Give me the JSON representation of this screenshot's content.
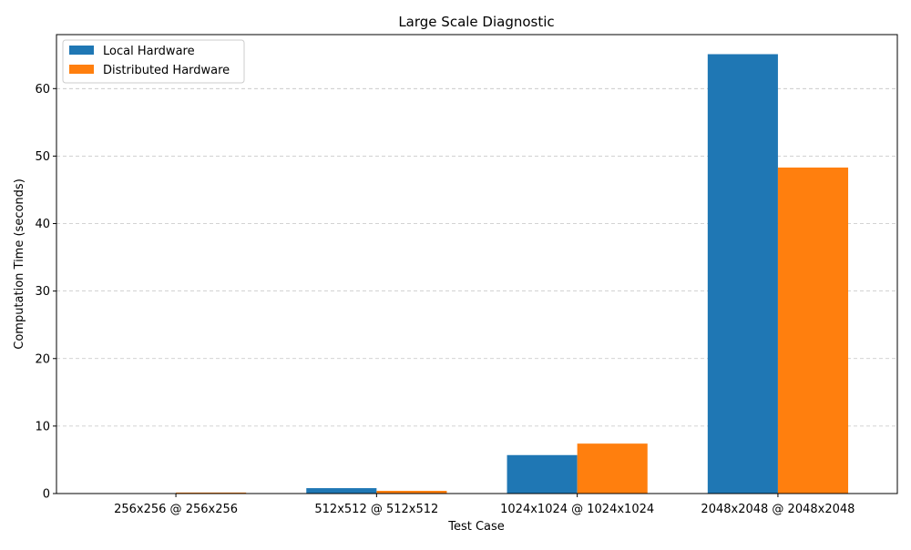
{
  "chart_data": {
    "type": "bar",
    "title": "Large Scale Diagnostic",
    "xlabel": "Test Case",
    "ylabel": "Computation Time (seconds)",
    "categories": [
      "256x256 @ 256x256",
      "512x512 @ 512x512",
      "1024x1024 @ 1024x1024",
      "2048x2048 @ 2048x2048"
    ],
    "series": [
      {
        "name": "Local Hardware",
        "color": "#1f77b4",
        "values": [
          0.05,
          0.8,
          5.7,
          65.1
        ]
      },
      {
        "name": "Distributed Hardware",
        "color": "#ff7f0e",
        "values": [
          0.15,
          0.4,
          7.4,
          48.3
        ]
      }
    ],
    "ylim": [
      0,
      68
    ],
    "yticks": [
      0,
      10,
      20,
      30,
      40,
      50,
      60
    ],
    "grid": "y-dashed",
    "legend": "top-left"
  }
}
